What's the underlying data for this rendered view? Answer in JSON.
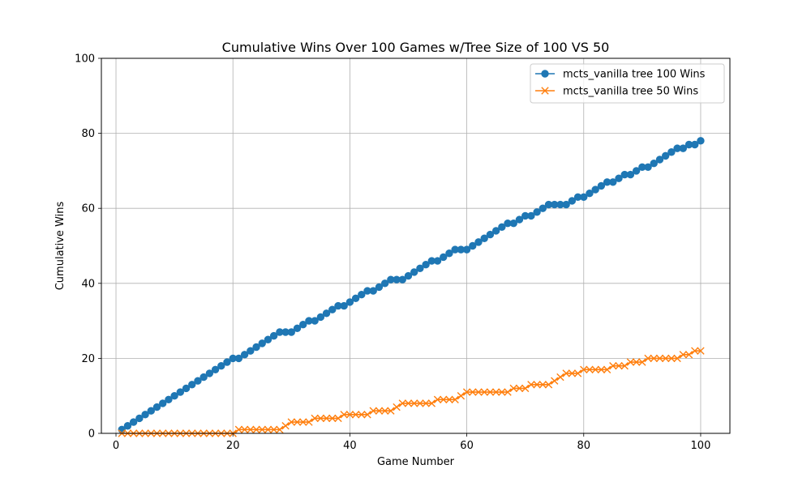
{
  "chart_data": {
    "type": "line",
    "title": "Cumulative Wins Over 100 Games w/Tree Size of 100 VS 50",
    "xlabel": "Game Number",
    "ylabel": "Cumulative Wins",
    "xlim": [
      -2.5,
      105
    ],
    "ylim": [
      0,
      100
    ],
    "xticks": [
      0,
      20,
      40,
      60,
      80,
      100
    ],
    "yticks": [
      0,
      20,
      40,
      60,
      80,
      100
    ],
    "grid": true,
    "legend_position": "top-right",
    "x": [
      1,
      2,
      3,
      4,
      5,
      6,
      7,
      8,
      9,
      10,
      11,
      12,
      13,
      14,
      15,
      16,
      17,
      18,
      19,
      20,
      21,
      22,
      23,
      24,
      25,
      26,
      27,
      28,
      29,
      30,
      31,
      32,
      33,
      34,
      35,
      36,
      37,
      38,
      39,
      40,
      41,
      42,
      43,
      44,
      45,
      46,
      47,
      48,
      49,
      50,
      51,
      52,
      53,
      54,
      55,
      56,
      57,
      58,
      59,
      60,
      61,
      62,
      63,
      64,
      65,
      66,
      67,
      68,
      69,
      70,
      71,
      72,
      73,
      74,
      75,
      76,
      77,
      78,
      79,
      80,
      81,
      82,
      83,
      84,
      85,
      86,
      87,
      88,
      89,
      90,
      91,
      92,
      93,
      94,
      95,
      96,
      97,
      98,
      99,
      100
    ],
    "series": [
      {
        "name": "mcts_vanilla tree 100 Wins",
        "color": "#1f77b4",
        "marker": "circle",
        "values": [
          1,
          2,
          3,
          4,
          5,
          6,
          7,
          8,
          9,
          10,
          11,
          12,
          13,
          14,
          15,
          16,
          17,
          18,
          19,
          20,
          20,
          21,
          22,
          23,
          24,
          25,
          26,
          27,
          27,
          27,
          28,
          29,
          30,
          30,
          31,
          32,
          33,
          34,
          34,
          35,
          36,
          37,
          38,
          38,
          39,
          40,
          41,
          41,
          41,
          42,
          43,
          44,
          45,
          46,
          46,
          47,
          48,
          49,
          49,
          49,
          50,
          51,
          52,
          53,
          54,
          55,
          56,
          56,
          57,
          58,
          58,
          59,
          60,
          61,
          61,
          61,
          61,
          62,
          63,
          63,
          64,
          65,
          66,
          67,
          67,
          68,
          69,
          69,
          70,
          71,
          71,
          72,
          73,
          74,
          75,
          76,
          76,
          77,
          77,
          78
        ]
      },
      {
        "name": "mcts_vanilla tree 50 Wins",
        "color": "#ff7f0e",
        "marker": "x",
        "values": [
          0,
          0,
          0,
          0,
          0,
          0,
          0,
          0,
          0,
          0,
          0,
          0,
          0,
          0,
          0,
          0,
          0,
          0,
          0,
          0,
          1,
          1,
          1,
          1,
          1,
          1,
          1,
          1,
          2,
          3,
          3,
          3,
          3,
          4,
          4,
          4,
          4,
          4,
          5,
          5,
          5,
          5,
          5,
          6,
          6,
          6,
          6,
          7,
          8,
          8,
          8,
          8,
          8,
          8,
          9,
          9,
          9,
          9,
          10,
          11,
          11,
          11,
          11,
          11,
          11,
          11,
          11,
          12,
          12,
          12,
          13,
          13,
          13,
          13,
          14,
          15,
          16,
          16,
          16,
          17,
          17,
          17,
          17,
          17,
          18,
          18,
          18,
          19,
          19,
          19,
          20,
          20,
          20,
          20,
          20,
          20,
          21,
          21,
          22,
          22
        ]
      }
    ]
  }
}
